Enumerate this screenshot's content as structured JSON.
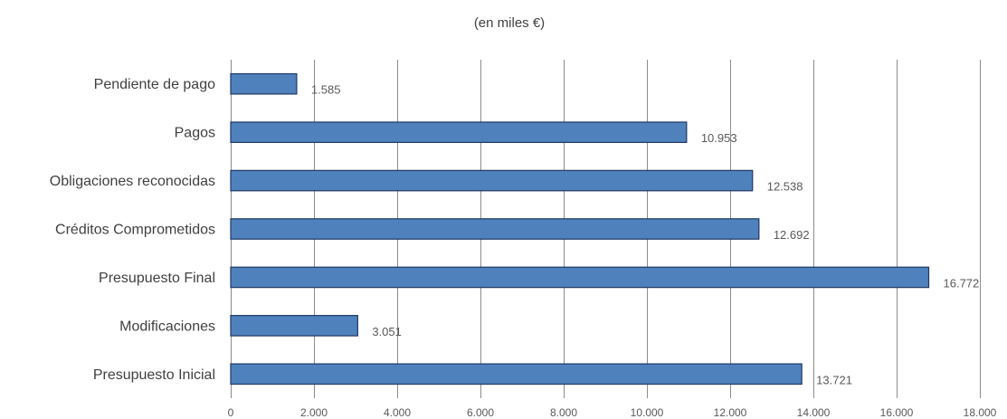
{
  "chart_data": {
    "type": "bar",
    "orientation": "horizontal",
    "subtitle": "(en miles €)",
    "categories": [
      "Pendiente de pago",
      "Pagos",
      "Obligaciones reconocidas",
      "Créditos Comprometidos",
      "Presupuesto Final",
      "Modificaciones",
      "Presupuesto Inicial"
    ],
    "values": [
      1585,
      10953,
      12538,
      12692,
      16772,
      3051,
      13721
    ],
    "data_labels": [
      "1.585",
      "10.953",
      "12.538",
      "12.692",
      "16.772",
      "3.051",
      "13.721"
    ],
    "xlim": [
      0,
      18000
    ],
    "x_ticks": [
      0,
      2000,
      4000,
      6000,
      8000,
      10000,
      12000,
      14000,
      16000,
      18000
    ],
    "x_tick_labels": [
      "0",
      "2.000",
      "4.000",
      "6.000",
      "8.000",
      "10.000",
      "12.000",
      "14.000",
      "16.000",
      "18.000"
    ],
    "grid": "vertical",
    "bar_color": "#4f81bd",
    "bar_edge_color": "#1f3864",
    "legend": "none"
  }
}
